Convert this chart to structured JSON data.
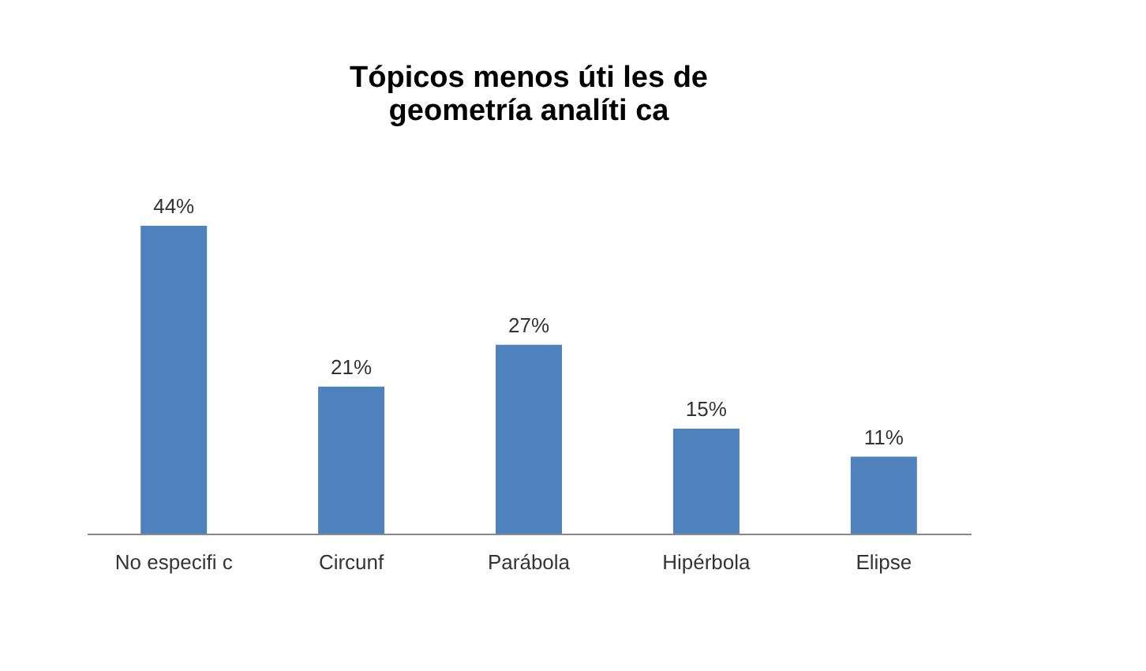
{
  "chart_data": {
    "type": "bar",
    "title": "Tópicos menos úti les de\ngeometría analíti ca",
    "categories": [
      "No especifi c",
      "Circunf",
      "Parábola",
      "Hipérbola",
      "Elipse"
    ],
    "values": [
      44,
      21,
      27,
      15,
      11
    ],
    "value_labels": [
      "44%",
      "21%",
      "27%",
      "15%",
      "11%"
    ],
    "color": "#4f81bd",
    "grid": false
  }
}
